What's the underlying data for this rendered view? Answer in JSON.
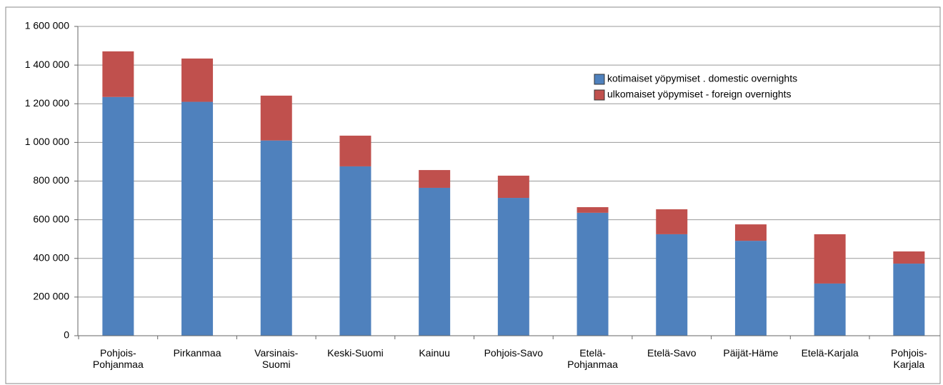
{
  "chart_data": {
    "type": "stacked_bar",
    "categories": [
      "Pohjois-\nPohjanmaa",
      "Pirkanmaa",
      "Varsinais-\nSuomi",
      "Keski-Suomi",
      "Kainuu",
      "Pohjois-Savo",
      "Etelä-\nPohjanmaa",
      "Etelä-Savo",
      "Päijät-Häme",
      "Etelä-Karjala",
      "Pohjois-\nKarjala"
    ],
    "series": [
      {
        "name": "kotimaiset yöpymiset . domestic overnights",
        "color": "#4f81bd",
        "values": [
          1235000,
          1210000,
          1010000,
          876000,
          765000,
          713000,
          636000,
          525000,
          491000,
          270000,
          373000
        ]
      },
      {
        "name": "ulkomaiset yöpymiset - foreign overnights",
        "color": "#c0504d",
        "values": [
          236000,
          224000,
          232000,
          159000,
          92000,
          115000,
          29000,
          129000,
          85000,
          255000,
          63000
        ]
      }
    ],
    "ylim": [
      0,
      1600000
    ],
    "yticks": [
      0,
      {
        "value": 200000,
        "label": "200 000"
      },
      {
        "value": 400000,
        "label": "400 000"
      },
      {
        "value": 600000,
        "label": "600 000"
      },
      {
        "value": 800000,
        "label": "800 000"
      },
      {
        "value": 1000000,
        "label": "1 000 000"
      },
      {
        "value": 1200000,
        "label": "1 200 000"
      },
      {
        "value": 1400000,
        "label": "1 400 000"
      },
      {
        "value": 1600000,
        "label": "1 600 000"
      }
    ],
    "grid": true,
    "legend": "upper right"
  }
}
